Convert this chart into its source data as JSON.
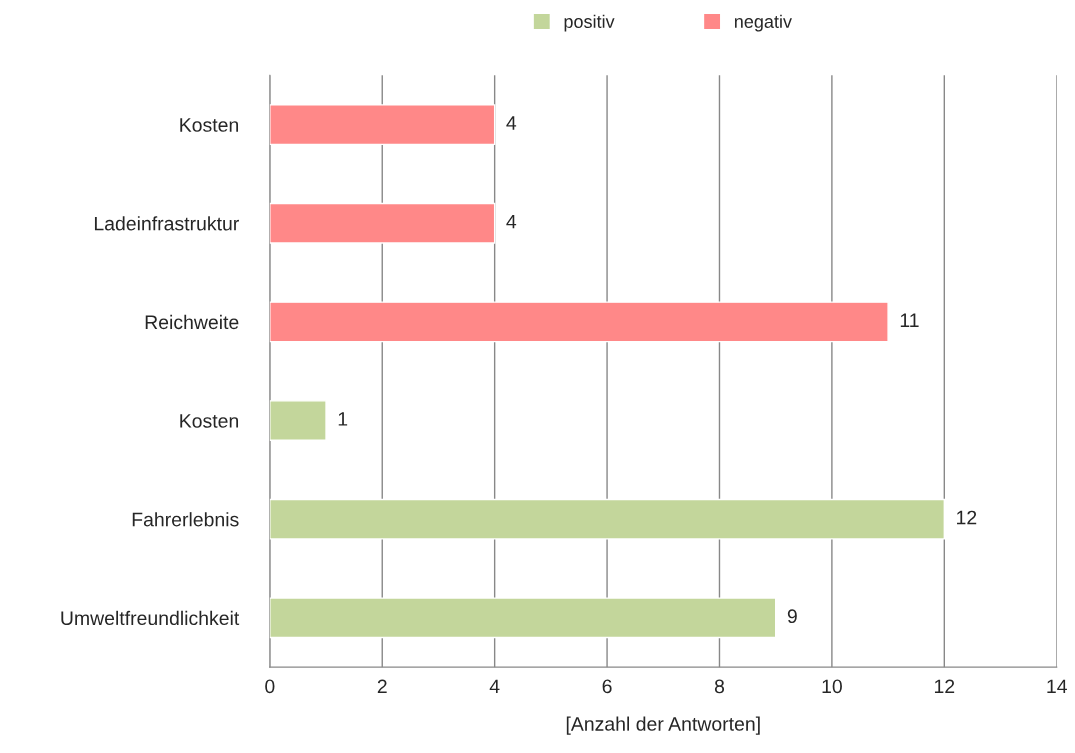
{
  "chart_data": {
    "type": "bar",
    "orientation": "horizontal",
    "stacked": true,
    "categories": [
      "Kosten",
      "Ladeinfrastruktur",
      "Reichweite",
      "Kosten",
      "Fahrerlebnis",
      "Umweltfreundlichkeit"
    ],
    "series": [
      {
        "name": "positiv",
        "color": "#c3d69b",
        "values": [
          null,
          null,
          null,
          1,
          12,
          9
        ]
      },
      {
        "name": "negativ",
        "color": "#ff8888",
        "values": [
          4,
          4,
          11,
          null,
          null,
          null
        ]
      }
    ],
    "xlabel": "[Anzahl der Antworten]",
    "xlim": [
      0,
      14
    ],
    "xticks": [
      0,
      2,
      4,
      6,
      8,
      10,
      12,
      14
    ],
    "grid": "x",
    "legend": "top",
    "data_labels": true
  }
}
